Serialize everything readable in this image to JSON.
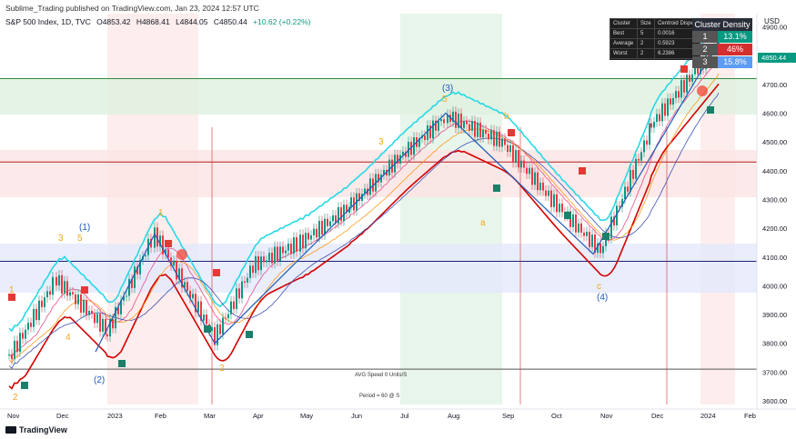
{
  "header": {
    "published": "Sublime_Trading published on TradingView.com, Jan 23, 2024 12:57 UTC",
    "symbol": "S&P 500 Index, 1D, TVC",
    "open": "O4853.42",
    "high": "H4868.41",
    "low": "L4844.05",
    "close": "C4850.44",
    "change": "+10.62 (+0.22%)",
    "currency": "USD"
  },
  "price_badge": {
    "value": "4850.44",
    "color": "#089981"
  },
  "cluster_table": {
    "headers": [
      "Cluster",
      "Size",
      "Centroid Disper"
    ],
    "rows": [
      [
        "Best",
        "5",
        "0.0016"
      ],
      [
        "Average",
        "2",
        "0.5923"
      ],
      [
        "Worst",
        "2",
        "6.2386"
      ]
    ]
  },
  "density": {
    "title": "Cluster   Density",
    "rows": [
      {
        "k": "1",
        "v": "13.1%",
        "color": "#089981"
      },
      {
        "k": "2",
        "v": "46%",
        "color": "#d32f2f"
      },
      {
        "k": "3",
        "v": "15.8%",
        "color": "#5b9cf6"
      }
    ]
  },
  "annotations": {
    "avg_speed": "AVG Speed 0 Units/S",
    "period": "Period = 60 @ S"
  },
  "wave_labels": [
    {
      "t": "(1)",
      "x": 87,
      "y": 253,
      "c": "#1e5bb8"
    },
    {
      "t": "3",
      "x": 64,
      "y": 265,
      "c": "#f2a71b"
    },
    {
      "t": "5",
      "x": 85,
      "y": 265,
      "c": "#f2a71b"
    },
    {
      "t": "1",
      "x": 174,
      "y": 237,
      "c": "#f2a71b"
    },
    {
      "t": "(2)",
      "x": 103,
      "y": 421,
      "c": "#1e5bb8"
    },
    {
      "t": "2",
      "x": 241,
      "y": 408,
      "c": "#f2a71b"
    },
    {
      "t": "3",
      "x": 416,
      "y": 159,
      "c": "#f2a71b"
    },
    {
      "t": "4",
      "x": 72,
      "y": 374,
      "c": "#f2a71b"
    },
    {
      "t": "(3)",
      "x": 486,
      "y": 100,
      "c": "#1e5bb8"
    },
    {
      "t": "5",
      "x": 486,
      "y": 112,
      "c": "#f2a71b"
    },
    {
      "t": "b",
      "x": 554,
      "y": 131,
      "c": "#f2a71b"
    },
    {
      "t": "a",
      "x": 528,
      "y": 248,
      "c": "#f2a71b"
    },
    {
      "t": "c",
      "x": 656,
      "y": 318,
      "c": "#f2a71b"
    },
    {
      "t": "(4)",
      "x": 656,
      "y": 330,
      "c": "#1e5bb8"
    },
    {
      "t": "1",
      "x": 10,
      "y": 322,
      "c": "#f2a71b"
    },
    {
      "t": "2",
      "x": 14,
      "y": 440,
      "c": "#f2a71b"
    }
  ],
  "chart_data": {
    "type": "line",
    "title": "S&P 500 Index, 1D, TVC",
    "y_axis": {
      "ticks": [
        3600,
        3700,
        3800,
        3900,
        4000,
        4100,
        4200,
        4300,
        4400,
        4500,
        4600,
        4700,
        4800,
        4900
      ],
      "labels": [
        "3600.00",
        "3700.00",
        "3800.00",
        "3900.00",
        "4000.00",
        "4100.00",
        "4200.00",
        "4300.00",
        "4400.00",
        "4500.00",
        "4600.00",
        "4700.00",
        "4800.00",
        "4900.00"
      ],
      "ylim": [
        3590,
        4980
      ]
    },
    "x_axis": {
      "labels": [
        "Nov",
        "Dec",
        "2023",
        "Feb",
        "Mar",
        "Apr",
        "May",
        "Jun",
        "Jul",
        "Aug",
        "Sep",
        "Oct",
        "Nov",
        "Dec",
        "2024",
        "Feb"
      ]
    },
    "grid": false,
    "series": [
      {
        "name": "S&P 500",
        "x": [
          "Nov",
          "Dec",
          "2023",
          "Feb",
          "Mar",
          "Apr",
          "May",
          "Jun",
          "Jul",
          "Aug",
          "Sep",
          "Oct",
          "Nov",
          "Dec",
          "2024"
        ],
        "values": [
          3750,
          4020,
          3840,
          4180,
          3820,
          4070,
          4150,
          4280,
          4450,
          4590,
          4500,
          4300,
          4120,
          4560,
          4850
        ]
      }
    ],
    "horizontal_levels": [
      4720,
      4430,
      4085,
      3710
    ]
  }
}
